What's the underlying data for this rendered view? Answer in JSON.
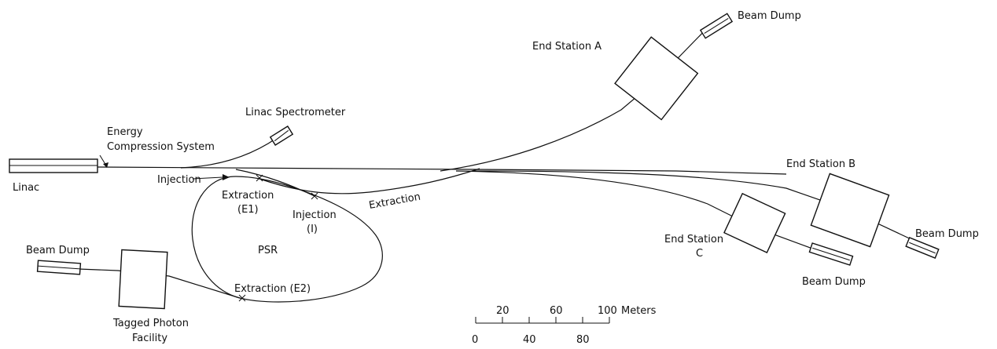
{
  "labels": {
    "energy_compression_line1": "Energy",
    "energy_compression_line2": "Compression System",
    "linac": "Linac",
    "linac_spectrometer": "Linac Spectrometer",
    "end_station_a": "End Station A",
    "end_station_b": "End Station B",
    "end_station_c_line1": "End Station",
    "end_station_c_line2": "C",
    "beam_dump_a": "Beam Dump",
    "beam_dump_b": "Beam Dump",
    "beam_dump_c": "Beam Dump",
    "beam_dump_tagged": "Beam Dump",
    "injection_left": "Injection",
    "injection_i_line1": "Injection",
    "injection_i_line2": "(I)",
    "extraction_e1_line1": "Extraction",
    "extraction_e1_line2": "(E1)",
    "extraction_main": "Extraction",
    "extraction_e2": "Extraction (E2)",
    "psr": "PSR",
    "tagged_photon_line1": "Tagged Photon",
    "tagged_photon_line2": "Facility"
  },
  "scale_bar": {
    "unit": "Meters",
    "top_ticks": [
      "20",
      "60",
      "100"
    ],
    "bottom_ticks": [
      "0",
      "40",
      "80"
    ]
  }
}
